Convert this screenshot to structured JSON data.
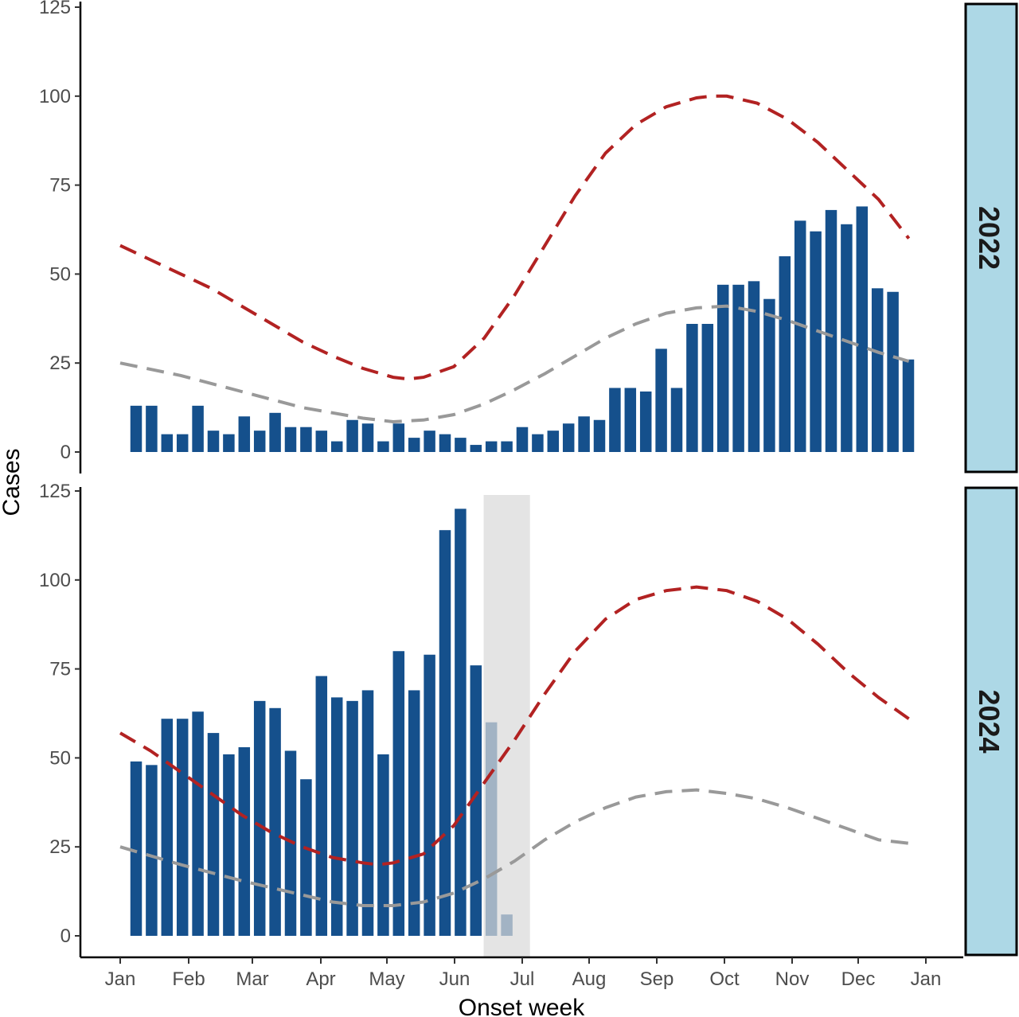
{
  "chart_data": {
    "type": "bar",
    "xlabel": "Onset week",
    "ylabel": "Cases",
    "x_ticks": [
      "Jan",
      "Feb",
      "Mar",
      "Apr",
      "May",
      "Jun",
      "Jul",
      "Aug",
      "Sep",
      "Oct",
      "Nov",
      "Dec",
      "Jan"
    ],
    "y_ticks": [
      0,
      25,
      50,
      75,
      100,
      125
    ],
    "ylim": [
      0,
      125
    ],
    "x_unit": "week",
    "colors": {
      "bars": "#15508c",
      "upper_threshold": "#b22222",
      "baseline": "#999999",
      "shaded_region": "#d9d9d9",
      "strip_fill": "#add8e6"
    },
    "panels": [
      {
        "strip_label": "2022",
        "bar_values": [
          13,
          13,
          5,
          5,
          13,
          6,
          5,
          10,
          6,
          11,
          7,
          7,
          6,
          3,
          9,
          8,
          3,
          8,
          4,
          6,
          5,
          4,
          2,
          3,
          3,
          7,
          5,
          6,
          8,
          10,
          9,
          18,
          18,
          17,
          29,
          18,
          36,
          36,
          47,
          47,
          48,
          43,
          55,
          65,
          62,
          68,
          64,
          69,
          46,
          45,
          26
        ],
        "upper_threshold": [
          [
            0,
            58
          ],
          [
            2,
            54
          ],
          [
            4,
            50
          ],
          [
            6,
            46
          ],
          [
            8,
            41
          ],
          [
            10,
            36
          ],
          [
            12,
            31
          ],
          [
            14,
            27
          ],
          [
            16,
            23.5
          ],
          [
            18,
            21
          ],
          [
            19,
            20.5
          ],
          [
            20,
            21
          ],
          [
            22,
            24
          ],
          [
            24,
            32
          ],
          [
            26,
            44
          ],
          [
            28,
            58
          ],
          [
            30,
            72
          ],
          [
            32,
            84
          ],
          [
            34,
            92
          ],
          [
            36,
            97
          ],
          [
            38,
            99.5
          ],
          [
            39,
            100
          ],
          [
            40,
            100
          ],
          [
            42,
            98
          ],
          [
            44,
            93.5
          ],
          [
            46,
            87
          ],
          [
            48,
            79
          ],
          [
            50,
            71
          ],
          [
            52,
            60
          ]
        ],
        "baseline": [
          [
            0,
            25
          ],
          [
            4,
            21.5
          ],
          [
            8,
            17
          ],
          [
            12,
            12.5
          ],
          [
            16,
            9.5
          ],
          [
            18,
            8.5
          ],
          [
            20,
            9
          ],
          [
            22,
            10.5
          ],
          [
            24,
            13.5
          ],
          [
            26,
            17.5
          ],
          [
            28,
            22
          ],
          [
            30,
            27
          ],
          [
            32,
            32
          ],
          [
            34,
            36
          ],
          [
            36,
            39
          ],
          [
            38,
            40.5
          ],
          [
            40,
            41
          ],
          [
            42,
            39.5
          ],
          [
            44,
            37
          ],
          [
            46,
            34
          ],
          [
            48,
            31
          ],
          [
            50,
            28
          ],
          [
            52,
            25.5
          ]
        ]
      },
      {
        "strip_label": "2024",
        "bar_values": [
          49,
          48,
          61,
          61,
          63,
          57,
          51,
          53,
          66,
          64,
          52,
          44,
          73,
          67,
          66,
          69,
          51,
          80,
          69,
          79,
          114,
          120,
          76,
          60,
          6
        ],
        "shaded_weeks": [
          23,
          26
        ],
        "upper_threshold": [
          [
            0,
            57
          ],
          [
            2,
            52
          ],
          [
            4,
            46
          ],
          [
            6,
            40
          ],
          [
            8,
            34
          ],
          [
            10,
            29
          ],
          [
            12,
            25
          ],
          [
            14,
            22
          ],
          [
            16,
            20.5
          ],
          [
            17,
            20
          ],
          [
            18,
            20.5
          ],
          [
            20,
            23
          ],
          [
            22,
            31
          ],
          [
            24,
            43
          ],
          [
            26,
            55
          ],
          [
            28,
            68
          ],
          [
            30,
            80
          ],
          [
            32,
            89
          ],
          [
            34,
            94.5
          ],
          [
            36,
            97
          ],
          [
            38,
            98
          ],
          [
            40,
            97
          ],
          [
            42,
            94
          ],
          [
            44,
            89
          ],
          [
            46,
            82
          ],
          [
            48,
            74
          ],
          [
            50,
            67
          ],
          [
            52,
            61
          ]
        ],
        "baseline": [
          [
            0,
            25
          ],
          [
            4,
            20
          ],
          [
            8,
            15.5
          ],
          [
            12,
            11.5
          ],
          [
            14,
            9.5
          ],
          [
            16,
            8.5
          ],
          [
            18,
            8.5
          ],
          [
            20,
            9.5
          ],
          [
            22,
            12
          ],
          [
            24,
            16
          ],
          [
            26,
            21
          ],
          [
            28,
            27
          ],
          [
            30,
            32
          ],
          [
            32,
            36
          ],
          [
            34,
            39
          ],
          [
            36,
            40.5
          ],
          [
            38,
            41
          ],
          [
            40,
            40
          ],
          [
            42,
            38.5
          ],
          [
            44,
            36
          ],
          [
            46,
            33
          ],
          [
            48,
            30
          ],
          [
            50,
            27
          ],
          [
            52,
            26
          ]
        ]
      }
    ]
  }
}
